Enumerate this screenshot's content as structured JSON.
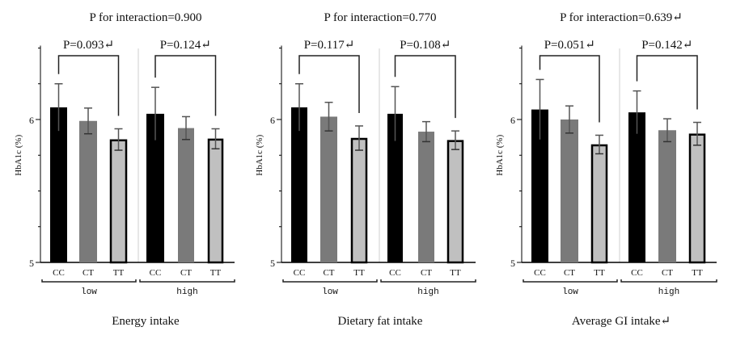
{
  "chart_data": [
    {
      "type": "bar",
      "title": "P for interaction=0.900",
      "xlabel": "Energy intake",
      "ylabel": "HbA1c (%)",
      "ylim": [
        5,
        6.5
      ],
      "yticks": [
        5,
        5.25,
        5.5,
        5.75,
        6,
        6.25,
        6.5
      ],
      "ytick_labels": [
        "5",
        "",
        "",
        "",
        "6",
        "",
        ""
      ],
      "grid": false,
      "categories": [
        "CC",
        "CT",
        "TT"
      ],
      "groups": [
        {
          "name": "low",
          "p_value_label": "P=0.093↵",
          "values": [
            6.085,
            5.99,
            5.86
          ],
          "errors": [
            0.165,
            0.09,
            0.075
          ]
        },
        {
          "name": "high",
          "p_value_label": "P=0.124↵",
          "values": [
            6.04,
            5.94,
            5.865
          ],
          "errors": [
            0.185,
            0.08,
            0.07
          ]
        }
      ],
      "series_colors": {
        "CC": "#000000",
        "CT": "#7a7a7a",
        "TT": "#c0c0c0"
      }
    },
    {
      "type": "bar",
      "title": "P for interaction=0.770",
      "xlabel": "Dietary fat intake",
      "ylabel": "HbA1c (%)",
      "ylim": [
        5,
        6.5
      ],
      "yticks": [
        5,
        5.25,
        5.5,
        5.75,
        6,
        6.25,
        6.5
      ],
      "ytick_labels": [
        "5",
        "",
        "",
        "",
        "6",
        "",
        ""
      ],
      "grid": false,
      "categories": [
        "CC",
        "CT",
        "TT"
      ],
      "groups": [
        {
          "name": "low",
          "p_value_label": "P=0.117↵",
          "values": [
            6.085,
            6.02,
            5.87
          ],
          "errors": [
            0.165,
            0.1,
            0.085
          ]
        },
        {
          "name": "high",
          "p_value_label": "P=0.108↵",
          "values": [
            6.04,
            5.915,
            5.855
          ],
          "errors": [
            0.19,
            0.07,
            0.065
          ]
        }
      ],
      "series_colors": {
        "CC": "#000000",
        "CT": "#7a7a7a",
        "TT": "#c0c0c0"
      }
    },
    {
      "type": "bar",
      "title": "P for interaction=0.639↵",
      "xlabel": "Average GI intake↵",
      "ylabel": "HbA1c (%)",
      "ylim": [
        5,
        6.5
      ],
      "yticks": [
        5,
        5.25,
        5.5,
        5.75,
        6,
        6.25,
        6.5
      ],
      "ytick_labels": [
        "5",
        "",
        "",
        "",
        "6",
        "",
        ""
      ],
      "grid": false,
      "categories": [
        "CC",
        "CT",
        "TT"
      ],
      "groups": [
        {
          "name": "low",
          "p_value_label": "P=0.051↵",
          "values": [
            6.07,
            6.0,
            5.825
          ],
          "errors": [
            0.21,
            0.095,
            0.065
          ]
        },
        {
          "name": "high",
          "p_value_label": "P=0.142↵",
          "values": [
            6.05,
            5.925,
            5.9
          ],
          "errors": [
            0.15,
            0.08,
            0.08
          ]
        }
      ],
      "series_colors": {
        "CC": "#000000",
        "CT": "#7a7a7a",
        "TT": "#c0c0c0"
      }
    }
  ]
}
